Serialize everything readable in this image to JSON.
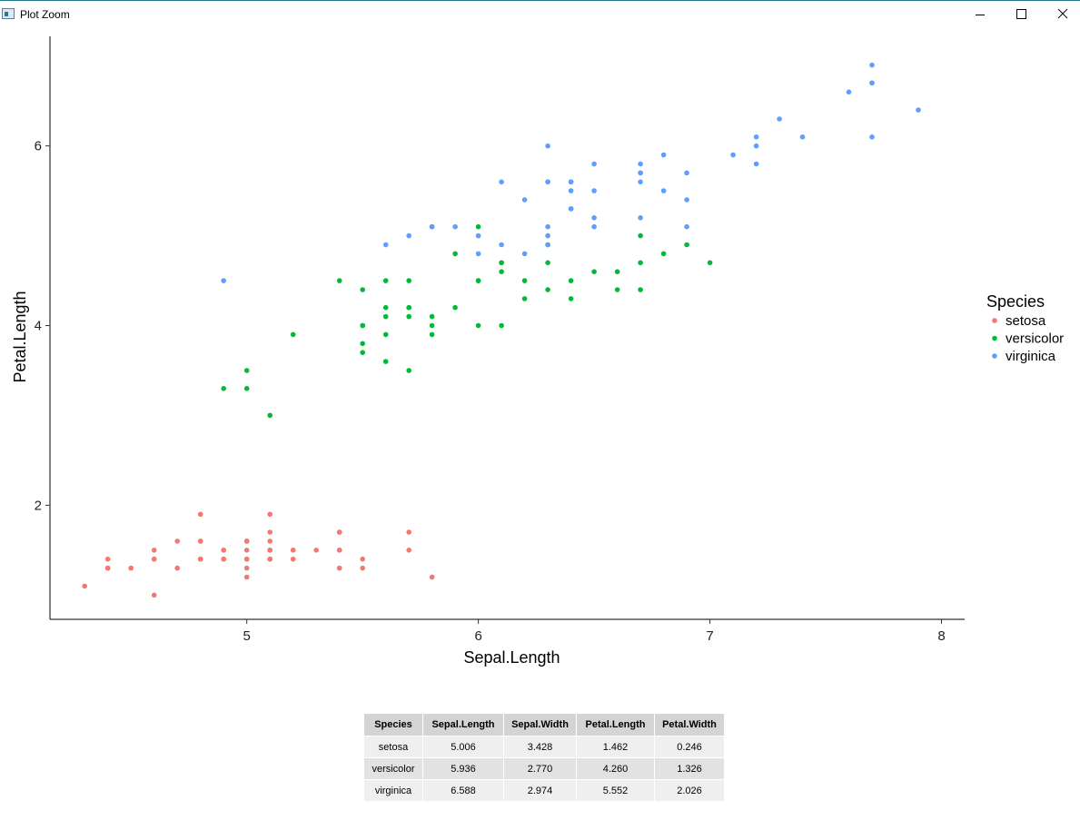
{
  "window": {
    "title": "Plot Zoom",
    "icon": "app-plot-icon",
    "controls": [
      "minimize-icon",
      "maximize-icon",
      "close-icon"
    ]
  },
  "chart_data": {
    "type": "scatter",
    "xlabel": "Sepal.Length",
    "ylabel": "Petal.Length",
    "xlim": [
      4.15,
      8.1
    ],
    "ylim": [
      0.73,
      7.22
    ],
    "xticks": [
      5,
      6,
      7,
      8
    ],
    "yticks": [
      2,
      4,
      6
    ],
    "grid": false,
    "legend": {
      "title": "Species",
      "position": "right"
    },
    "series": [
      {
        "name": "setosa",
        "color": "#F8766D",
        "x": [
          5.1,
          4.9,
          4.7,
          4.6,
          5.0,
          5.4,
          4.6,
          5.0,
          4.4,
          4.9,
          5.4,
          4.8,
          4.8,
          4.3,
          5.8,
          5.7,
          5.4,
          5.1,
          5.7,
          5.1,
          5.4,
          5.1,
          4.6,
          5.1,
          4.8,
          5.0,
          5.0,
          5.2,
          5.2,
          4.7,
          4.8,
          5.4,
          5.2,
          5.5,
          4.9,
          5.0,
          5.5,
          4.9,
          4.4,
          5.1,
          5.0,
          4.5,
          4.4,
          5.0,
          5.1,
          4.8,
          5.1,
          4.6,
          5.3,
          5.0
        ],
        "y": [
          1.4,
          1.4,
          1.3,
          1.5,
          1.4,
          1.7,
          1.4,
          1.5,
          1.4,
          1.5,
          1.5,
          1.6,
          1.4,
          1.1,
          1.2,
          1.5,
          1.3,
          1.4,
          1.7,
          1.5,
          1.7,
          1.5,
          1.0,
          1.7,
          1.9,
          1.6,
          1.6,
          1.5,
          1.4,
          1.6,
          1.6,
          1.5,
          1.5,
          1.4,
          1.5,
          1.2,
          1.3,
          1.4,
          1.3,
          1.5,
          1.3,
          1.3,
          1.3,
          1.6,
          1.9,
          1.4,
          1.6,
          1.4,
          1.5,
          1.4
        ]
      },
      {
        "name": "versicolor",
        "color": "#00BA38",
        "x": [
          7.0,
          6.4,
          6.9,
          5.5,
          6.5,
          5.7,
          6.3,
          4.9,
          6.6,
          5.2,
          5.0,
          5.9,
          6.0,
          6.1,
          5.6,
          6.7,
          5.6,
          5.8,
          6.2,
          5.6,
          5.9,
          6.1,
          6.3,
          6.1,
          6.4,
          6.6,
          6.8,
          6.7,
          6.0,
          5.7,
          5.5,
          5.5,
          5.8,
          6.0,
          5.4,
          6.0,
          6.7,
          6.3,
          5.6,
          5.5,
          5.5,
          6.1,
          5.8,
          5.0,
          5.6,
          5.7,
          5.7,
          6.2,
          5.1,
          5.7
        ],
        "y": [
          4.7,
          4.5,
          4.9,
          4.0,
          4.6,
          4.5,
          4.7,
          3.3,
          4.6,
          3.9,
          3.5,
          4.2,
          4.0,
          4.7,
          3.6,
          4.4,
          4.5,
          4.1,
          4.5,
          3.9,
          4.8,
          4.0,
          4.9,
          4.7,
          4.3,
          4.4,
          4.8,
          5.0,
          4.5,
          3.5,
          3.8,
          3.7,
          3.9,
          5.1,
          4.5,
          4.5,
          4.7,
          4.4,
          4.1,
          4.0,
          4.4,
          4.6,
          4.0,
          3.3,
          4.2,
          4.2,
          4.2,
          4.3,
          3.0,
          4.1
        ]
      },
      {
        "name": "virginica",
        "color": "#619CFF",
        "x": [
          6.3,
          5.8,
          7.1,
          6.3,
          6.5,
          7.6,
          4.9,
          7.3,
          6.7,
          7.2,
          6.5,
          6.4,
          6.8,
          5.7,
          5.8,
          6.4,
          6.5,
          7.7,
          7.7,
          6.0,
          6.9,
          5.6,
          7.7,
          6.3,
          6.7,
          7.2,
          6.2,
          6.1,
          6.4,
          7.2,
          7.4,
          7.9,
          6.4,
          6.3,
          6.1,
          7.7,
          6.3,
          6.4,
          6.0,
          6.9,
          6.7,
          6.9,
          5.8,
          6.8,
          6.7,
          6.7,
          6.3,
          6.5,
          6.2,
          5.9
        ],
        "y": [
          6.0,
          5.1,
          5.9,
          5.6,
          5.8,
          6.6,
          4.5,
          6.3,
          5.8,
          6.1,
          5.1,
          5.3,
          5.5,
          5.0,
          5.1,
          5.3,
          5.5,
          6.7,
          6.9,
          5.0,
          5.7,
          4.9,
          6.7,
          4.9,
          5.7,
          6.0,
          4.8,
          4.9,
          5.6,
          5.8,
          6.1,
          6.4,
          5.6,
          5.1,
          5.6,
          6.1,
          5.6,
          5.5,
          4.8,
          5.4,
          5.6,
          5.1,
          5.1,
          5.9,
          5.7,
          5.2,
          5.0,
          5.2,
          5.4,
          5.1
        ]
      }
    ]
  },
  "table": {
    "headers": [
      "Species",
      "Sepal.Length",
      "Sepal.Width",
      "Petal.Length",
      "Petal.Width"
    ],
    "rows": [
      [
        "setosa",
        "5.006",
        "3.428",
        "1.462",
        "0.246"
      ],
      [
        "versicolor",
        "5.936",
        "2.770",
        "4.260",
        "1.326"
      ],
      [
        "virginica",
        "6.588",
        "2.974",
        "5.552",
        "2.026"
      ]
    ]
  }
}
